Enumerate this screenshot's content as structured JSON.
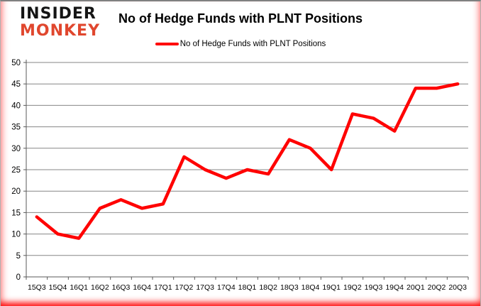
{
  "branding": {
    "logo_line1": "INSIDER",
    "logo_line2": "MONKEY",
    "logo_color_primary": "#151515",
    "logo_color_secondary": "#e0472e"
  },
  "header": {
    "title": "No of Hedge Funds with PLNT Positions"
  },
  "legend": {
    "label": "No of Hedge Funds with PLNT Positions",
    "line_color": "#ff0000"
  },
  "chart_data": {
    "type": "line",
    "title": "No of Hedge Funds with PLNT Positions",
    "categories": [
      "15Q3",
      "15Q4",
      "16Q1",
      "16Q2",
      "16Q3",
      "16Q4",
      "17Q1",
      "17Q2",
      "17Q3",
      "17Q4",
      "18Q1",
      "18Q2",
      "18Q3",
      "18Q4",
      "19Q1",
      "19Q2",
      "19Q3",
      "19Q4",
      "20Q1",
      "20Q2",
      "20Q3"
    ],
    "series": [
      {
        "name": "No of Hedge Funds with PLNT Positions",
        "color": "#ff0000",
        "values": [
          14,
          10,
          9,
          16,
          18,
          16,
          17,
          28,
          25,
          23,
          25,
          24,
          32,
          30,
          25,
          38,
          37,
          34,
          44,
          44,
          45
        ]
      }
    ],
    "xlabel": "",
    "ylabel": "",
    "ylim": [
      0,
      50
    ],
    "ytick_step": 5,
    "grid": "horizontal",
    "legend_position": "top",
    "colors": {
      "gridline": "#868686",
      "axis": "#595959",
      "tick_label": "#000000"
    }
  }
}
